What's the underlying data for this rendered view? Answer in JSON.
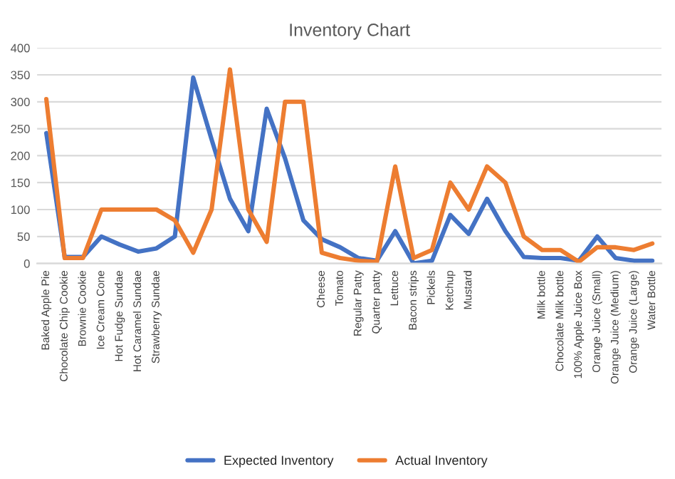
{
  "chart_data": {
    "type": "line",
    "title": "Inventory Chart",
    "categories": [
      "Baked Apple Pie",
      "Chocolate Chip Cookie",
      "Brownie Cookie",
      "Ice Cream Cone",
      "Hot Fudge Sundae",
      "Hot Caramel Sundae",
      "Strawberry Sundae",
      null,
      null,
      null,
      null,
      null,
      null,
      null,
      null,
      "Cheese",
      "Tomato",
      "Regular Patty",
      "Quarter patty",
      "Lettuce",
      "Bacon strips",
      "Pickels",
      "Ketchup",
      "Mustard",
      null,
      null,
      null,
      "Milk bottle",
      "Chocolate Milk bottle",
      "100% Apple Juice Box",
      "Orange Juice (Small)",
      "Orange Juice (Medium)",
      "Orange Juice (Large)",
      "Water Bottle"
    ],
    "series": [
      {
        "name": "Expected Inventory",
        "color": "#4472c4",
        "values": [
          242,
          12,
          12,
          50,
          35,
          22,
          28,
          50,
          345,
          230,
          120,
          60,
          287,
          195,
          80,
          45,
          30,
          10,
          5,
          60,
          0,
          5,
          90,
          55,
          120,
          60,
          12,
          10,
          10,
          5,
          50,
          10,
          5,
          5
        ]
      },
      {
        "name": "Actual Inventory",
        "color": "#ed7d31",
        "values": [
          305,
          10,
          10,
          100,
          100,
          100,
          100,
          80,
          20,
          100,
          360,
          100,
          40,
          300,
          300,
          20,
          10,
          5,
          3,
          180,
          10,
          25,
          150,
          100,
          180,
          150,
          50,
          25,
          25,
          3,
          30,
          30,
          25,
          37
        ]
      }
    ],
    "ylim": [
      0,
      400
    ],
    "yticks": [
      0,
      50,
      100,
      150,
      200,
      250,
      300,
      350,
      400
    ],
    "grid": "y",
    "legend": "bottom",
    "marker": "none",
    "line_style": "solid"
  }
}
